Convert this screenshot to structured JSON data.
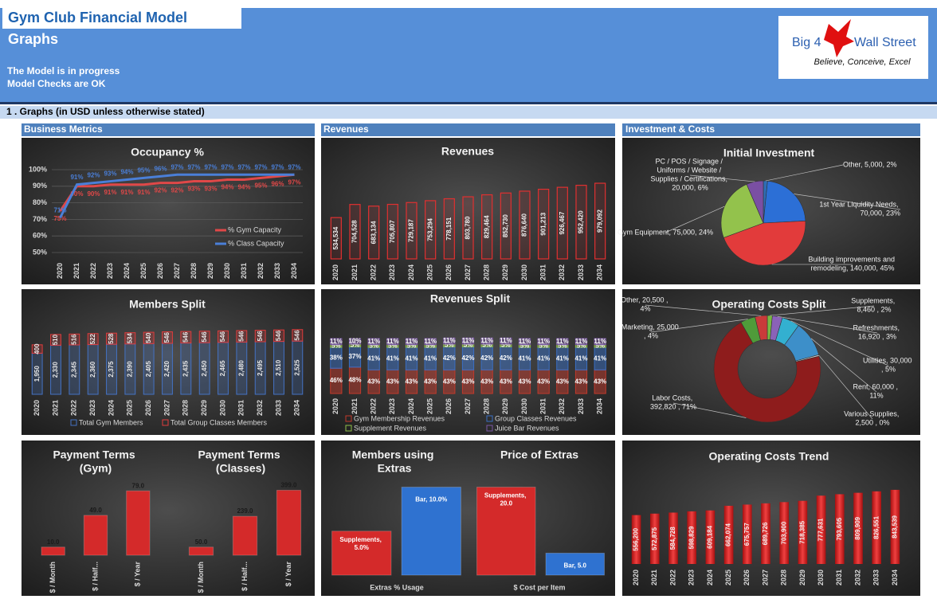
{
  "header": {
    "title": "Gym Club Financial Model",
    "subtitle": "Graphs",
    "status": [
      "The Model is in progress",
      "Model Checks are OK"
    ],
    "logo": {
      "name_left": "Big 4",
      "name_right": "Wall Street",
      "tagline": "Believe, Conceive, Excel"
    },
    "section": "1 . Graphs (in USD unless otherwise stated)",
    "panels": [
      "Business Metrics",
      "Revenues",
      "Investment & Costs"
    ]
  },
  "chart_data": [
    {
      "type": "line",
      "title": "Occupancy %",
      "categories": [
        "2020",
        "2021",
        "2022",
        "2023",
        "2024",
        "2025",
        "2026",
        "2027",
        "2028",
        "2029",
        "2030",
        "2031",
        "2032",
        "2033",
        "2034"
      ],
      "series": [
        {
          "name": "% Gym Capacity",
          "color": "#e04848",
          "values": [
            75,
            90,
            90,
            91,
            91,
            91,
            92,
            92,
            93,
            93,
            94,
            94,
            95,
            96,
            97
          ],
          "value_labels": [
            "75%",
            "90%",
            "90%",
            "91%",
            "91%",
            "91%",
            "92%",
            "92%",
            "93%",
            "93%",
            "94%",
            "94%",
            "95%",
            "96%",
            "97%"
          ]
        },
        {
          "name": "% Class Capacity",
          "color": "#4a7fd8",
          "values": [
            71,
            91,
            92,
            93,
            94,
            95,
            96,
            97,
            97,
            97,
            97,
            97,
            97,
            97,
            97
          ],
          "value_labels": [
            "71%",
            "91%",
            "92%",
            "93%",
            "94%",
            "95%",
            "96%",
            "97%",
            "97%",
            "97%",
            "97%",
            "97%",
            "97%",
            "97%",
            "97%"
          ]
        }
      ],
      "ylim": [
        50,
        100
      ],
      "yticks": [
        {
          "value": 50,
          "label": "50%"
        },
        {
          "value": 60,
          "label": "60%"
        },
        {
          "value": 70,
          "label": "70%"
        },
        {
          "value": 80,
          "label": "80%"
        },
        {
          "value": 90,
          "label": "90%"
        },
        {
          "value": 100,
          "label": "100%"
        }
      ],
      "grid": true
    },
    {
      "type": "bar",
      "title": "Revenues",
      "categories": [
        "2020",
        "2021",
        "2022",
        "2023",
        "2024",
        "2025",
        "2026",
        "2027",
        "2028",
        "2029",
        "2030",
        "2031",
        "2032",
        "2033",
        "2034"
      ],
      "values": [
        534534,
        704528,
        683134,
        705807,
        729187,
        753294,
        778151,
        803780,
        829464,
        852730,
        876640,
        901213,
        926467,
        952420,
        979092
      ],
      "value_labels": [
        "534,534",
        "704,528",
        "683,134",
        "705,807",
        "729,187",
        "753,294",
        "778,151",
        "803,780",
        "829,464",
        "852,730",
        "876,640",
        "901,213",
        "926,467",
        "952,420",
        "979,092"
      ],
      "color": "#e03030",
      "ylim": [
        0,
        1000000
      ]
    },
    {
      "type": "stacked_bar",
      "title": "Members Split",
      "categories": [
        "2020",
        "2021",
        "2022",
        "2023",
        "2024",
        "2025",
        "2026",
        "2027",
        "2028",
        "2029",
        "2030",
        "2031",
        "2032",
        "2033",
        "2034"
      ],
      "series": [
        {
          "name": "Total Gym Members",
          "color": "#4472c4",
          "values": [
            1950,
            2330,
            2345,
            2360,
            2375,
            2390,
            2405,
            2420,
            2435,
            2450,
            2465,
            2480,
            2495,
            2510,
            2525
          ],
          "value_labels": [
            "1,950",
            "2,330",
            "2,345",
            "2,360",
            "2,375",
            "2,390",
            "2,405",
            "2,420",
            "2,435",
            "2,450",
            "2,465",
            "2,480",
            "2,495",
            "2,510",
            "2,525"
          ]
        },
        {
          "name": "Total Group Classes Members",
          "color": "#e03c3c",
          "values": [
            400,
            510,
            516,
            522,
            528,
            534,
            540,
            546,
            546,
            546,
            546,
            546,
            546,
            546,
            546
          ]
        }
      ],
      "ylim": [
        0,
        3100
      ]
    },
    {
      "type": "stacked_bar",
      "title": "Revenues Split",
      "categories": [
        "2020",
        "2021",
        "2022",
        "2023",
        "2024",
        "2025",
        "2026",
        "2027",
        "2028",
        "2029",
        "2030",
        "2031",
        "2032",
        "2033",
        "2034"
      ],
      "series": [
        {
          "name": "Gym Membership Revenues",
          "color": "#c0392b",
          "values": [
            46,
            48,
            43,
            43,
            43,
            43,
            43,
            43,
            43,
            43,
            43,
            43,
            43,
            43,
            43
          ],
          "value_labels": [
            "46%",
            "48%",
            "43%",
            "43%",
            "43%",
            "43%",
            "43%",
            "43%",
            "43%",
            "43%",
            "43%",
            "43%",
            "43%",
            "43%",
            "43%"
          ]
        },
        {
          "name": "Group Classes Revenues",
          "color": "#3a6fc4",
          "values": [
            38,
            37,
            41,
            41,
            41,
            41,
            42,
            42,
            42,
            42,
            41,
            41,
            41,
            41,
            41
          ],
          "value_labels": [
            "38%",
            "37%",
            "41%",
            "41%",
            "41%",
            "41%",
            "42%",
            "42%",
            "42%",
            "42%",
            "41%",
            "41%",
            "41%",
            "41%",
            "41%"
          ]
        },
        {
          "name": "Supplement Revenues",
          "color": "#8fbf4a",
          "values": [
            5,
            5,
            5,
            5,
            5,
            5,
            5,
            5,
            5,
            5,
            5,
            5,
            5,
            5,
            5
          ],
          "value_labels": [
            "5%",
            "5%",
            "5%",
            "5%",
            "5%",
            "5%",
            "5%",
            "5%",
            "5%",
            "5%",
            "5%",
            "5%",
            "5%",
            "5%",
            "5%"
          ]
        },
        {
          "name": "Juice Bar Revenues",
          "color": "#7b58a6",
          "values": [
            11,
            10,
            11,
            11,
            11,
            11,
            11,
            11,
            11,
            11,
            11,
            11,
            11,
            11,
            11
          ],
          "value_labels": [
            "11%",
            "10%",
            "11%",
            "11%",
            "11%",
            "11%",
            "11%",
            "11%",
            "11%",
            "11%",
            "11%",
            "11%",
            "11%",
            "11%",
            "11%"
          ]
        }
      ],
      "ylim": [
        0,
        100
      ]
    },
    {
      "type": "pie",
      "title": "Initial Investment",
      "categories": [
        "Other",
        "1st Year Liquidity Needs",
        "Building improvements and remodeling",
        "Gym Equipment",
        "PC / POS / Signage / Uniforms / Website / Supplies / Certifications"
      ],
      "values": [
        5000,
        70000,
        140000,
        75000,
        20000
      ],
      "data_labels": [
        "Other, 5,000, 2%",
        "1st Year Liquidity Needs, 70,000, 23%",
        "Building improvements and remodeling, 140,000, 45%",
        "Gym Equipment, 75,000, 24%",
        "PC / POS / Signage / Uniforms / Website / Supplies / Certifications, 20,000, 6%"
      ],
      "colors": [
        "#2f6db5",
        "#2c6fd6",
        "#e23b3b",
        "#93c24c",
        "#7a4fa3"
      ]
    },
    {
      "type": "doughnut",
      "title": "Operating Costs Split",
      "categories": [
        "Supplements",
        "Refreshments",
        "Utilities",
        "Rent",
        "Various Supplies",
        "Labor Costs",
        "Marketing",
        "Other"
      ],
      "values": [
        8460,
        16920,
        30000,
        60000,
        2500,
        392820,
        25000,
        20500
      ],
      "data_labels": [
        "Supplements, 8,460 , 2%",
        "Refreshments, 16,920 , 3%",
        "Utilities, 30,000 , 5%",
        "Rent, 60,000 , 11%",
        "Various Supplies, 2,500 , 0%",
        "Labor Costs, 392,820 , 71%",
        "Marketing, 25,000 , 4%",
        "Other, 20,500 , 4%"
      ],
      "colors": [
        "#79b843",
        "#8a62b8",
        "#33b0d0",
        "#3d8fc9",
        "#c8c8c8",
        "#8e1c1c",
        "#4f9b3a",
        "#c93a3a"
      ]
    },
    {
      "type": "bar",
      "title": "Payment Terms (Gym)",
      "categories": [
        "$ / Month",
        "$ / Half...",
        "$ / Year"
      ],
      "values": [
        10,
        49,
        79
      ],
      "value_labels": [
        "10.0",
        "49.0",
        "79.0"
      ],
      "color": "#d42a2a",
      "ylim": [
        0,
        90
      ]
    },
    {
      "type": "bar",
      "title": "Payment Terms (Classes)",
      "categories": [
        "$ / Month",
        "$ / Half...",
        "$ / Year"
      ],
      "values": [
        50,
        239,
        399
      ],
      "value_labels": [
        "50.0",
        "239.0",
        "399.0"
      ],
      "color": "#d42a2a",
      "ylim": [
        0,
        450
      ]
    },
    {
      "type": "bar",
      "title": "Members using Extras",
      "xlabel": "Extras % Usage",
      "values": [
        5,
        10
      ],
      "data_labels": [
        "Supplements, 5.0%",
        "Bar, 10.0%"
      ],
      "colors": [
        "#d42a2a",
        "#2f72d0"
      ],
      "ylim": [
        0,
        10.5
      ]
    },
    {
      "type": "bar",
      "title": "Price of Extras",
      "xlabel": "$ Cost per Item",
      "values": [
        20,
        5
      ],
      "data_labels": [
        "Supplements, 20.0",
        "Bar, 5.0"
      ],
      "colors": [
        "#d42a2a",
        "#2f72d0"
      ],
      "ylim": [
        0,
        21
      ]
    },
    {
      "type": "bar",
      "title": "Operating Costs Trend",
      "categories": [
        "2020",
        "2021",
        "2022",
        "2023",
        "2024",
        "2025",
        "2026",
        "2027",
        "2028",
        "2029",
        "2030",
        "2031",
        "2032",
        "2033",
        "2034"
      ],
      "values": [
        556200,
        572875,
        584728,
        598829,
        609184,
        662074,
        675757,
        689726,
        703900,
        718385,
        777631,
        793605,
        809909,
        826551,
        843539
      ],
      "value_labels": [
        "556,200",
        "572,875",
        "584,728",
        "598,829",
        "609,184",
        "662,074",
        "675,757",
        "689,726",
        "703,900",
        "718,385",
        "777,631",
        "793,605",
        "809,909",
        "826,551",
        "843,539"
      ],
      "color": "#e01e1e",
      "ylim": [
        0,
        870000
      ]
    }
  ]
}
